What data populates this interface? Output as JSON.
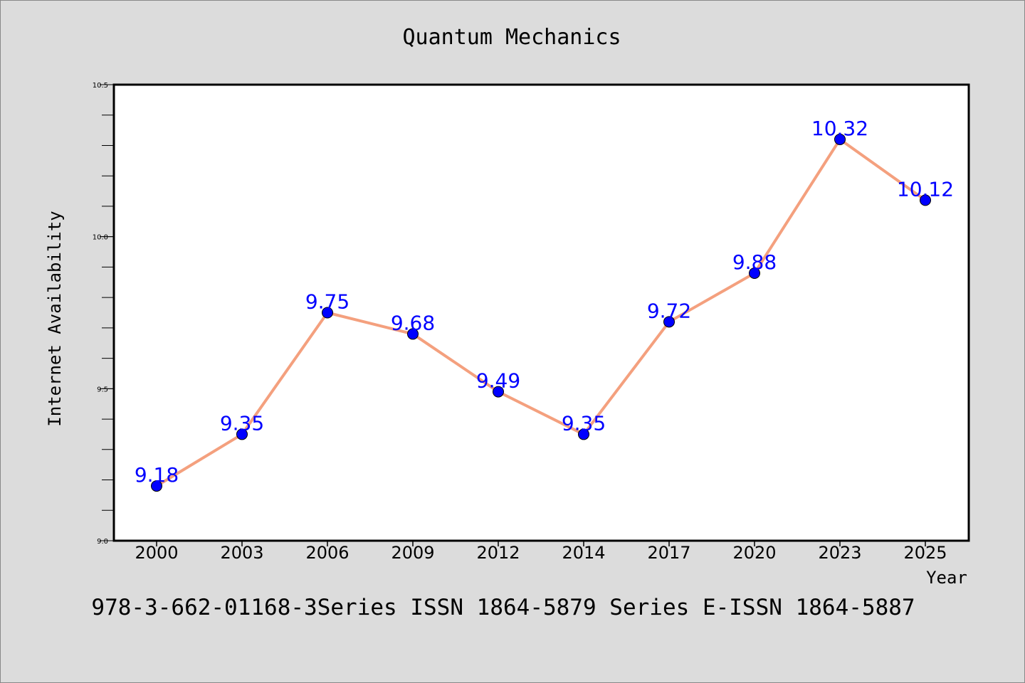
{
  "chart_data": {
    "type": "line",
    "title": "Quantum Mechanics",
    "xlabel": "Year",
    "ylabel": "Internet Availability",
    "categories": [
      "2000",
      "2003",
      "2006",
      "2009",
      "2012",
      "2014",
      "2017",
      "2020",
      "2023",
      "2025"
    ],
    "series": [
      {
        "values": [
          9.18,
          9.35,
          9.75,
          9.68,
          9.49,
          9.35,
          9.72,
          9.88,
          10.32,
          10.12
        ]
      }
    ],
    "data_labels": [
      "9.18",
      "9.35",
      "9.75",
      "9.68",
      "9.49",
      "9.35",
      "9.72",
      "9.88",
      "10.32",
      "10.12"
    ],
    "ylim": [
      9.0,
      10.5
    ],
    "yticks": [
      "9.0",
      "9.5",
      "10.0",
      "10.5"
    ],
    "grid": false,
    "colors": {
      "line": "#f4a07e",
      "marker": "#0000ff",
      "label": "#0000ff",
      "background": "#dcdcdc",
      "plot_area": "#ffffff"
    }
  },
  "footer": {
    "text": "978-3-662-01168-3Series ISSN 1864-5879 Series E-ISSN 1864-5887"
  }
}
